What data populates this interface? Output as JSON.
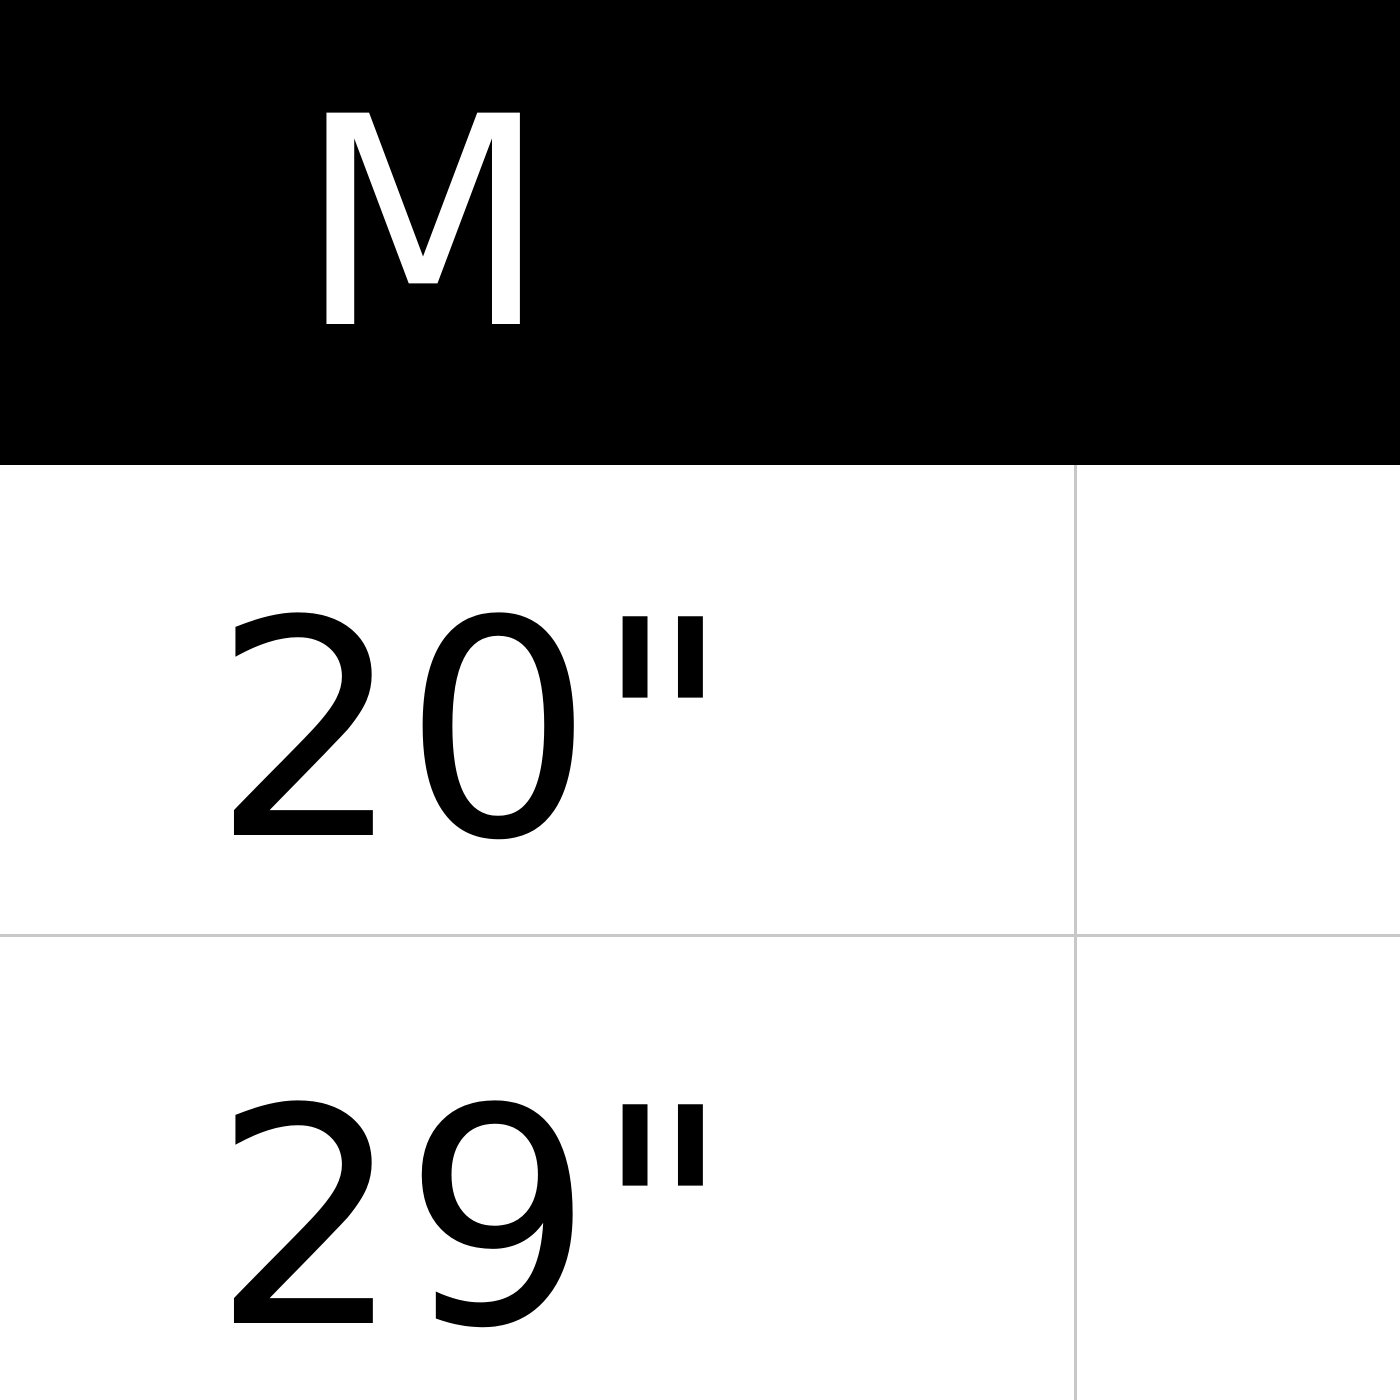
{
  "table": {
    "header": [
      "M",
      ""
    ],
    "rows": [
      [
        "20\"",
        ""
      ],
      [
        "29\"",
        ""
      ]
    ]
  }
}
